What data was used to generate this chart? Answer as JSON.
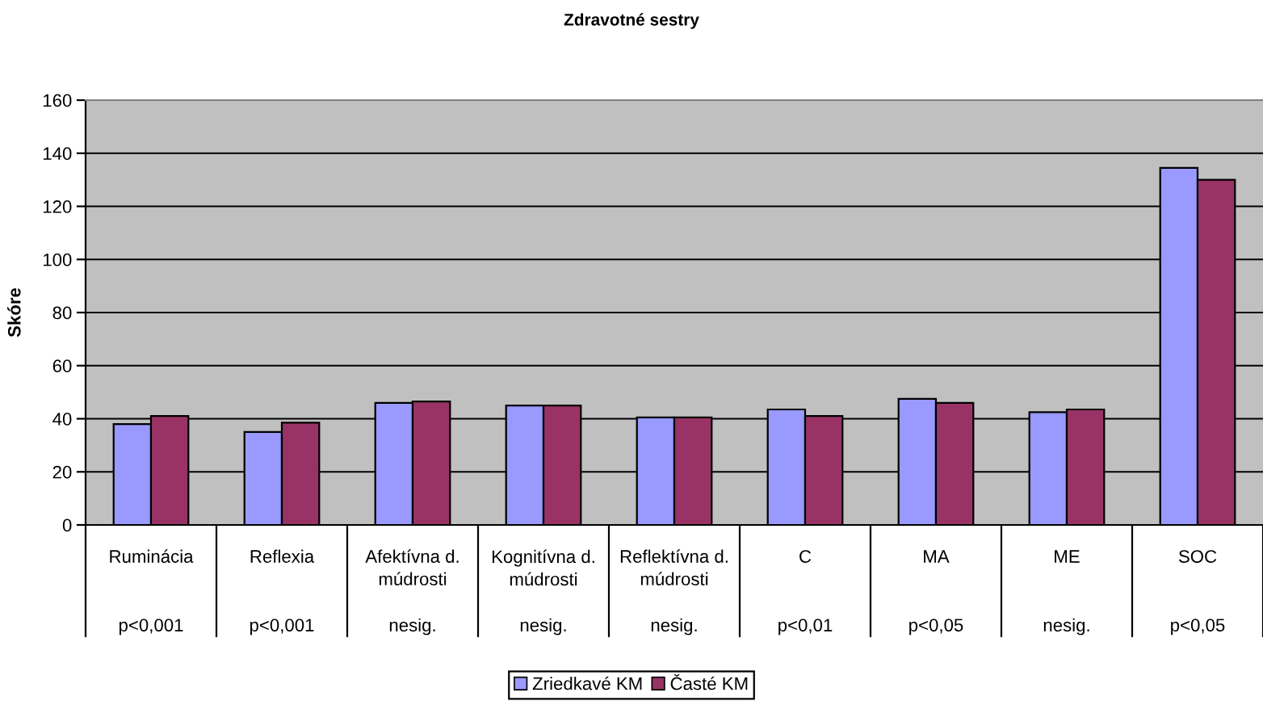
{
  "chart_data": {
    "type": "bar",
    "title": "Zdravotné sestry",
    "ylabel": "Skóre",
    "categories": [
      "Ruminácia",
      "Reflexia",
      "Afektívna d.\nmúdrosti",
      "Kognitívna d.\nmúdrosti",
      "Reflektívna d.\nmúdrosti",
      "C",
      "MA",
      "ME",
      "SOC"
    ],
    "series": [
      {
        "name": "Zriedkavé KM",
        "color": "#9999ff",
        "values": [
          38,
          35,
          46,
          45,
          40.5,
          43.5,
          47.5,
          42.5,
          134.5
        ]
      },
      {
        "name": "Časté KM",
        "color": "#993366",
        "values": [
          41,
          38.5,
          46.5,
          45,
          40.5,
          41,
          46,
          43.5,
          130
        ]
      }
    ],
    "ylim": [
      0,
      160
    ],
    "yticks": [
      0,
      20,
      40,
      60,
      80,
      100,
      120,
      140,
      160
    ],
    "grid": "y",
    "legend": "bottom",
    "annotations": [
      "p<0,001",
      "p<0,001",
      "nesig.",
      "nesig.",
      "nesig.",
      "p<0,01",
      "p<0,05",
      "nesig.",
      "p<0,05"
    ]
  }
}
